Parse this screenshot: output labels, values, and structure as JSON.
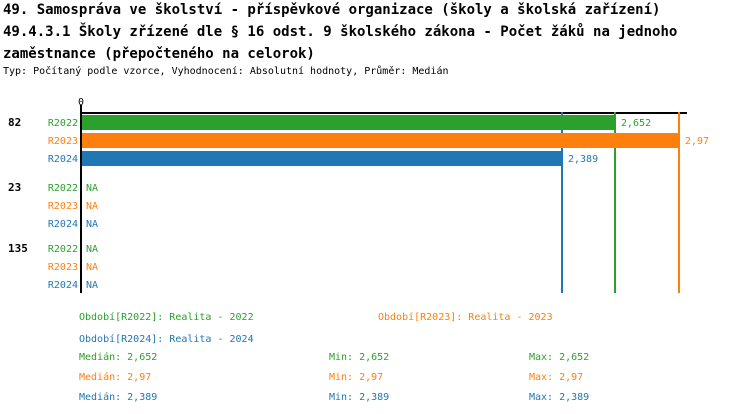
{
  "header": {
    "title_line1": "49. Samospráva ve školství - příspěvkové organizace (školy a školská zařízení)",
    "title_line2": "49.4.3.1 Školy zřízené dle § 16 odst. 9 školského zákona - Počet žáků na jednoho",
    "title_line3": "zaměstnance (přepočteného na celorok)",
    "subtitle": "Typ: Počítaný podle vzorce, Vyhodnocení: Absolutní hodnoty, Průměr: Medián"
  },
  "colors": {
    "r2022_green": "#2ca02c",
    "r2023_orange": "#ff7f0e",
    "r2024_blue": "#1f77b4",
    "axis_black": "#000000"
  },
  "chart_data": {
    "type": "bar",
    "orientation": "horizontal",
    "title": "49.4.3.1 Školy zřízené dle § 16 odst. 9 školského zákona - Počet žáků na jednoho zaměstnance (přepočteného na celorok)",
    "axis": {
      "zero_label": "0",
      "range": [
        0,
        3.0
      ],
      "grid": "value reference lines only"
    },
    "series": [
      "R2022",
      "R2023",
      "R2024"
    ],
    "series_colors": [
      "#2ca02c",
      "#ff7f0e",
      "#1f77b4"
    ],
    "groups": [
      {
        "label": "82",
        "values": [
          2.652,
          2.97,
          2.389
        ],
        "value_labels": [
          "2,652",
          "2,97",
          "2,389"
        ]
      },
      {
        "label": "23",
        "values": [
          null,
          null,
          null
        ],
        "value_labels": [
          "NA",
          "NA",
          "NA"
        ]
      },
      {
        "label": "135",
        "values": [
          null,
          null,
          null
        ],
        "value_labels": [
          "NA",
          "NA",
          "NA"
        ]
      }
    ],
    "reference_lines": [
      {
        "value": 2.389,
        "color": "#1f77b4"
      },
      {
        "value": 2.652,
        "color": "#2ca02c"
      },
      {
        "value": 2.97,
        "color": "#ff7f0e"
      }
    ]
  },
  "legend": {
    "periods": [
      {
        "label": "Období[R2022]: Realita - 2022",
        "color": "#2ca02c",
        "row": 0,
        "col": 0
      },
      {
        "label": "Období[R2023]: Realita - 2023",
        "color": "#ff7f0e",
        "row": 0,
        "col": 1
      },
      {
        "label": "Období[R2024]: Realita - 2024",
        "color": "#1f77b4",
        "row": 1,
        "col": 0
      }
    ],
    "stats": [
      {
        "median": "Medián: 2,652",
        "min": "Min: 2,652",
        "max": "Max: 2,652",
        "color": "#2ca02c"
      },
      {
        "median": "Medián: 2,97",
        "min": "Min: 2,97",
        "max": "Max: 2,97",
        "color": "#ff7f0e"
      },
      {
        "median": "Medián: 2,389",
        "min": "Min: 2,389",
        "max": "Max: 2,389",
        "color": "#1f77b4"
      }
    ]
  }
}
